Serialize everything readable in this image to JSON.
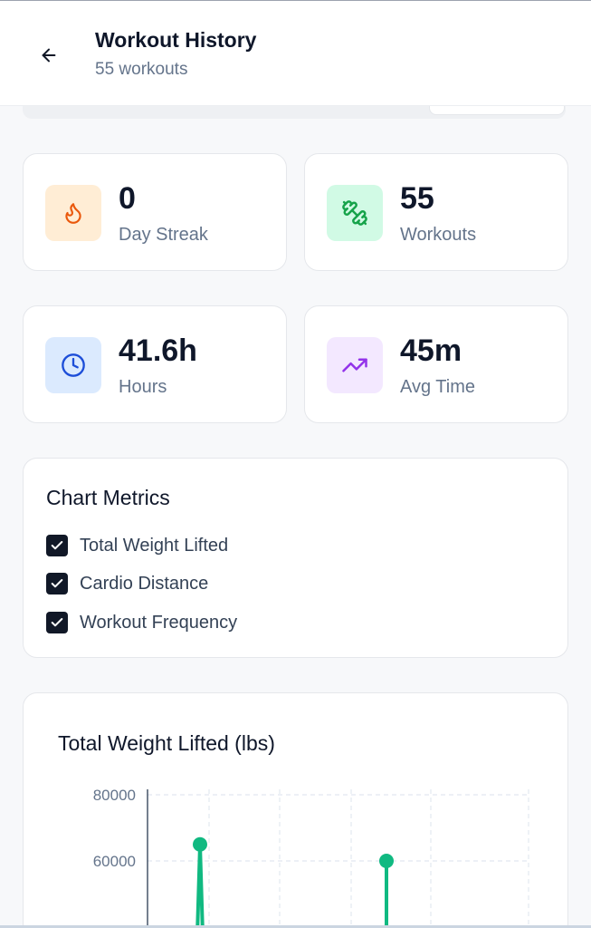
{
  "header": {
    "title": "Workout History",
    "subtitle": "55 workouts"
  },
  "stats": [
    {
      "value": "0",
      "label": "Day Streak",
      "icon": "flame-icon",
      "icon_color": "#ea580c",
      "bg_color": "#ffedd5"
    },
    {
      "value": "55",
      "label": "Workouts",
      "icon": "dumbbell-icon",
      "icon_color": "#16a34a",
      "bg_color": "#d1fae5"
    },
    {
      "value": "41.6h",
      "label": "Hours",
      "icon": "clock-icon",
      "icon_color": "#2563eb",
      "bg_color": "#dbeafe"
    },
    {
      "value": "45m",
      "label": "Avg Time",
      "icon": "trending-up-icon",
      "icon_color": "#9333ea",
      "bg_color": "#f3e8ff"
    }
  ],
  "metrics": {
    "title": "Chart Metrics",
    "items": [
      {
        "label": "Total Weight Lifted",
        "checked": true
      },
      {
        "label": "Cardio Distance",
        "checked": true
      },
      {
        "label": "Workout Frequency",
        "checked": true
      }
    ]
  },
  "chart_data": {
    "type": "line",
    "title": "Total Weight Lifted (lbs)",
    "xlabel": "",
    "ylabel": "",
    "ylim": [
      0,
      80000
    ],
    "y_ticks": [
      "80000",
      "60000"
    ],
    "grid": true,
    "color": "#10b981",
    "series": [
      {
        "values": [
          65000,
          60000
        ]
      }
    ]
  }
}
